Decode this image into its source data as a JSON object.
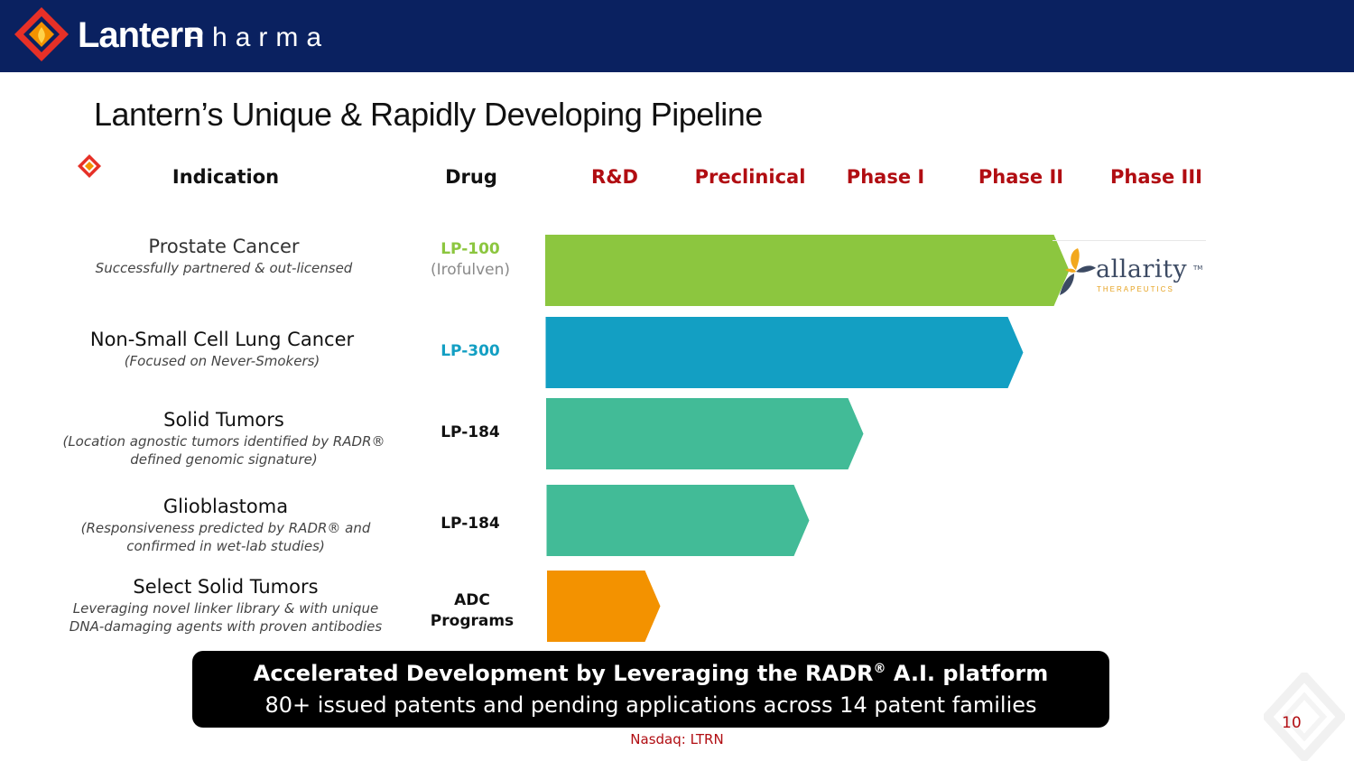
{
  "header": {
    "brand": "Lantern",
    "brand_sub": "Pharma"
  },
  "title": "Lantern’s Unique & Rapidly Developing Pipeline",
  "columns": {
    "indication": "Indication",
    "drug": "Drug",
    "stages": [
      "R&D",
      "Preclinical",
      "Phase I",
      "Phase II",
      "Phase III"
    ]
  },
  "rows": [
    {
      "indication": "Prostate Cancer",
      "subtitle": "Successfully partnered & out-licensed",
      "drug": "LP-100",
      "drug_sub": "(Irofulven)",
      "progress_stage": 3.87,
      "color": "#8cc63f"
    },
    {
      "indication": "Non-Small Cell Lung Cancer",
      "subtitle": "(Focused on Never-Smokers)",
      "drug": "LP-300",
      "drug_sub": "",
      "progress_stage": 3.53,
      "color": "#139fc3"
    },
    {
      "indication": "Solid Tumors",
      "subtitle": "(Location agnostic tumors identified by RADR® defined genomic signature)",
      "drug": "LP-184",
      "drug_sub": "",
      "progress_stage": 2.35,
      "color": "#42bb97"
    },
    {
      "indication": "Glioblastoma",
      "subtitle": "(Responsiveness predicted by RADR® and confirmed in wet-lab studies)",
      "drug": "LP-184",
      "drug_sub": "",
      "progress_stage": 1.95,
      "color": "#42bb97"
    },
    {
      "indication": "Select Solid Tumors",
      "subtitle": "Leveraging novel linker library & with unique DNA-damaging agents with proven antibodies",
      "drug": "ADC Programs",
      "drug_sub": "",
      "progress_stage": 0.85,
      "color": "#f39200"
    }
  ],
  "partner": {
    "name": "allarity",
    "tagline": "THERAPEUTICS",
    "tm": "TM"
  },
  "banner": {
    "line1_pre": "Accelerated Development by Leveraging the RADR",
    "line1_sup": "®",
    "line1_post": " A.I. platform",
    "line2": "80+ issued patents and pending applications across 14 patent families"
  },
  "page_number": "10",
  "footer": "Nasdaq: LTRN",
  "colors": {
    "header_bg": "#0a2160",
    "stage_red": "#b10d12",
    "logo_red": "#e63027",
    "logo_orange": "#f39200"
  }
}
